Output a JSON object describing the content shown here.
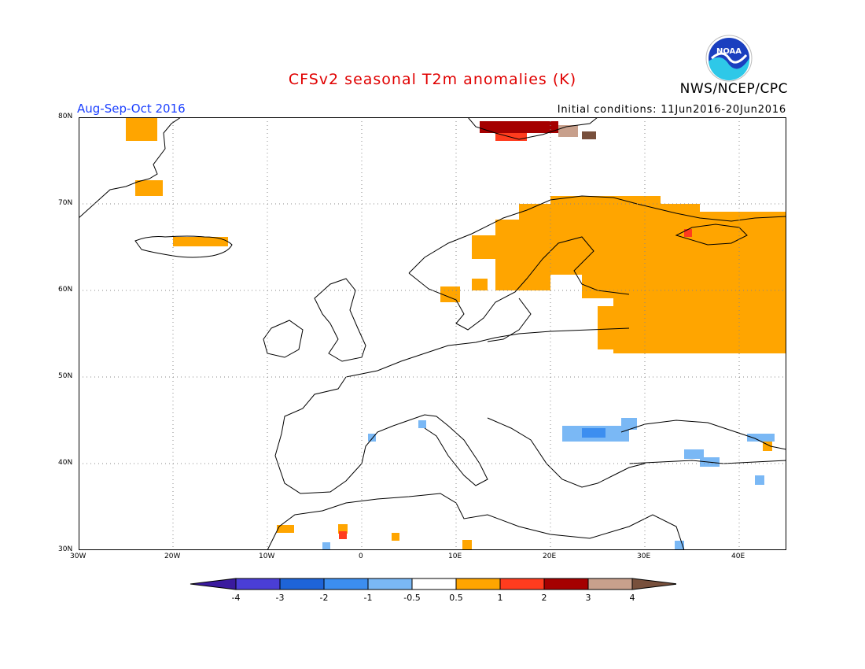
{
  "title": "CFSv2 seasonal T2m anomalies (K)",
  "agency": "NWS/NCEP/CPC",
  "logo_text": "NOAA",
  "season": "Aug-Sep-Oct 2016",
  "initial_conditions": "Initial conditions: 11Jun2016-20Jun2016",
  "axes": {
    "lon_labels": [
      "30W",
      "20W",
      "10W",
      "0",
      "10E",
      "20E",
      "30E",
      "40E"
    ],
    "lat_labels": [
      "80N",
      "70N",
      "60N",
      "50N",
      "40N",
      "30N"
    ]
  },
  "legend": {
    "tick_labels": [
      "-4",
      "-3",
      "-2",
      "-1",
      "-0.5",
      "0.5",
      "1",
      "2",
      "3",
      "4"
    ],
    "colors": [
      "#3a1a9e",
      "#4a3ed6",
      "#1e64d8",
      "#3c8ef0",
      "#7ab8f5",
      "#ffffff",
      "#ffa500",
      "#ff3c1e",
      "#a50000",
      "#c8a08c",
      "#78503c"
    ]
  },
  "colors": {
    "title": "#e00000",
    "season": "#1a3fff",
    "anom_pos1": "#ffa500",
    "anom_pos2": "#ff3c1e",
    "anom_pos3": "#a50000",
    "anom_pos4": "#c8a08c",
    "anom_pos5": "#78503c",
    "anom_neg1": "#7ab8f5",
    "anom_neg2": "#3c8ef0"
  }
}
